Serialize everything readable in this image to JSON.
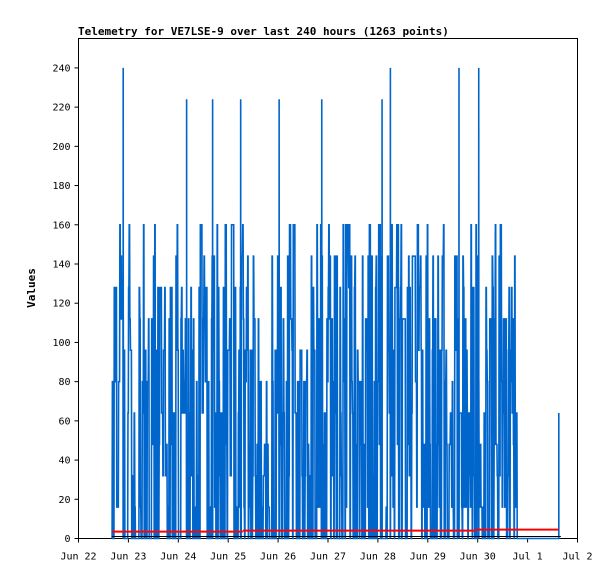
{
  "chart_data": {
    "type": "line",
    "title": "Telemetry for VE7LSE-9 over last 240 hours (1263 points)",
    "ylabel": "Values",
    "xlabel": "",
    "xlim": [
      0,
      240
    ],
    "ylim": [
      0,
      255
    ],
    "x_ticks": [
      {
        "x": 0,
        "label": "Jun 22"
      },
      {
        "x": 24,
        "label": "Jun 23"
      },
      {
        "x": 48,
        "label": "Jun 24"
      },
      {
        "x": 72,
        "label": "Jun 25"
      },
      {
        "x": 96,
        "label": "Jun 26"
      },
      {
        "x": 120,
        "label": "Jun 27"
      },
      {
        "x": 144,
        "label": "Jun 28"
      },
      {
        "x": 168,
        "label": "Jun 29"
      },
      {
        "x": 192,
        "label": "Jun 30"
      },
      {
        "x": 216,
        "label": "Jul 1"
      },
      {
        "x": 240,
        "label": "Jul 2"
      }
    ],
    "y_ticks": [
      0,
      20,
      40,
      60,
      80,
      100,
      120,
      140,
      160,
      180,
      200,
      220,
      240
    ],
    "grid": false,
    "legend": "none",
    "series": [
      {
        "color": "#0066cc",
        "description_levels": [
          0,
          16,
          32,
          48,
          64,
          80,
          96,
          112,
          128,
          144,
          160,
          176,
          192,
          208,
          224,
          240
        ],
        "active_ranges": [
          [
            16,
            211
          ],
          [
            231,
            232
          ]
        ],
        "peaks": [
          {
            "x": 21.5,
            "y": 240
          },
          {
            "x": 52.0,
            "y": 224
          },
          {
            "x": 64.5,
            "y": 224
          },
          {
            "x": 78.0,
            "y": 224
          },
          {
            "x": 96.5,
            "y": 224
          },
          {
            "x": 117.0,
            "y": 224
          },
          {
            "x": 146.0,
            "y": 224
          },
          {
            "x": 150.0,
            "y": 240
          },
          {
            "x": 183.0,
            "y": 240
          },
          {
            "x": 192.5,
            "y": 240
          },
          {
            "x": 231.5,
            "y": 64
          }
        ]
      },
      {
        "color": "#ff0000",
        "segments": [
          {
            "x0": 16,
            "x1": 79,
            "y": 3.5
          },
          {
            "x0": 79,
            "x1": 191,
            "y": 4
          },
          {
            "x0": 191,
            "x1": 231,
            "y": 4.5
          }
        ]
      },
      {
        "color": "#000000",
        "segments": [
          {
            "x0": 16,
            "x1": 232,
            "y": 1
          }
        ]
      }
    ]
  }
}
